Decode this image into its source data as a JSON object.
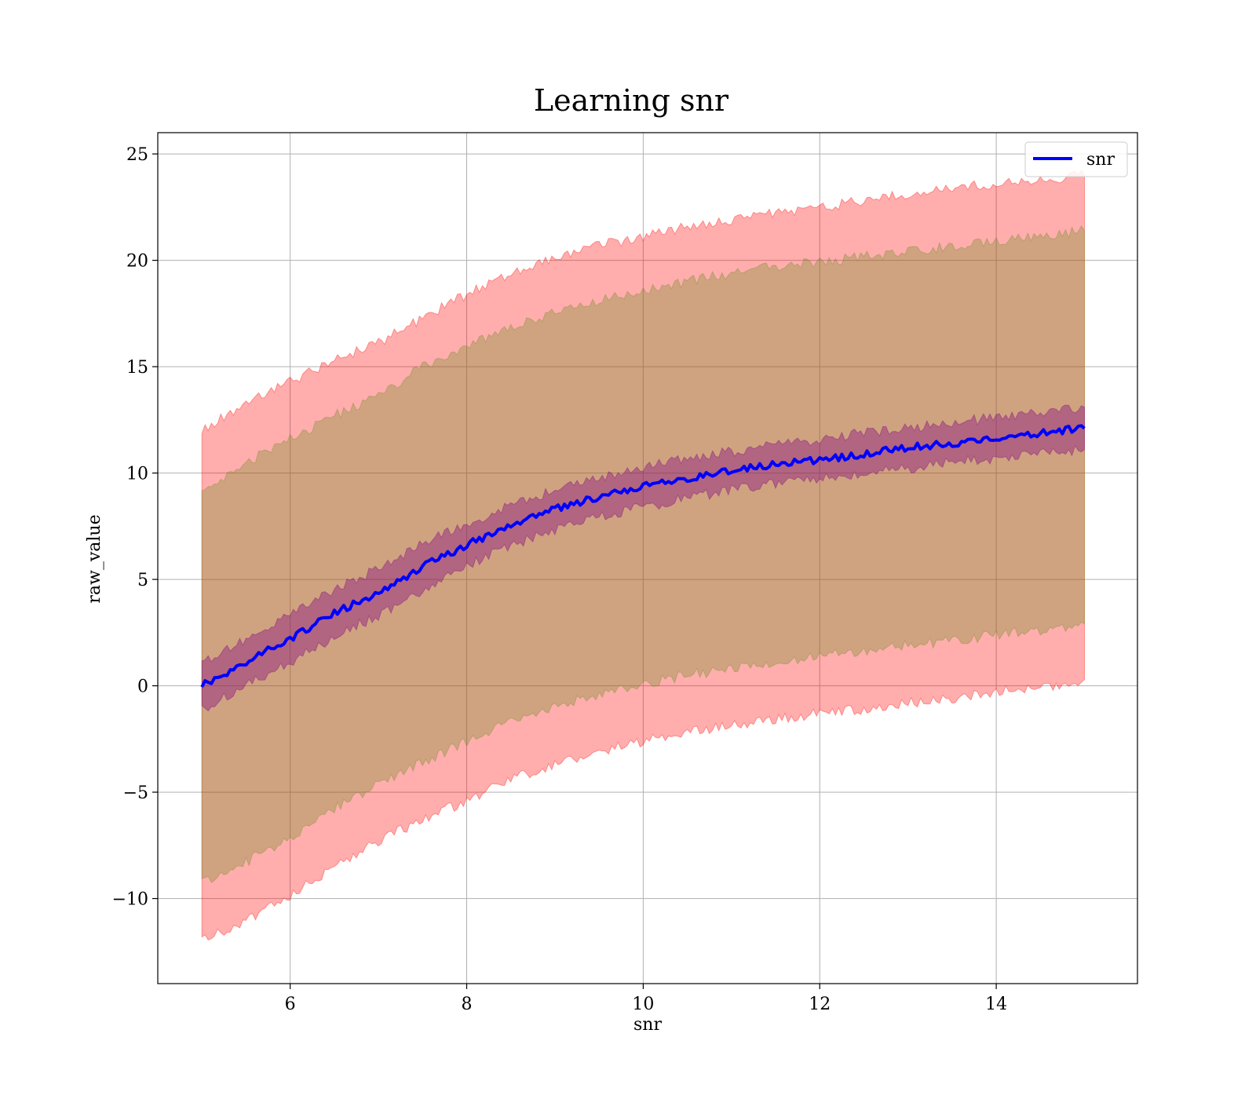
{
  "chart_data": {
    "type": "line",
    "title": "Learning snr",
    "xlabel": "snr",
    "ylabel": "raw_value",
    "xlim": [
      4.5,
      15.6
    ],
    "ylim": [
      -14,
      26
    ],
    "x_ticks": [
      6,
      8,
      10,
      12,
      14
    ],
    "y_ticks": [
      25,
      20,
      15,
      10,
      5,
      0,
      -5,
      -10
    ],
    "x_tick_labels": [
      "6",
      "8",
      "10",
      "12",
      "14"
    ],
    "y_tick_labels": [
      "25",
      "20",
      "15",
      "10",
      "5",
      "0",
      "−5",
      "−10"
    ],
    "grid": true,
    "legend": {
      "position": "top-right",
      "entries": [
        "snr"
      ]
    },
    "x": [
      5,
      5.5,
      6,
      6.5,
      7,
      7.5,
      8,
      8.5,
      9,
      9.5,
      10,
      10.5,
      11,
      11.5,
      12,
      12.5,
      13,
      13.5,
      14,
      14.5,
      15
    ],
    "series": [
      {
        "name": "snr",
        "color": "#0000ff",
        "values": [
          0.0,
          1.1,
          2.2,
          3.4,
          4.4,
          5.6,
          6.6,
          7.6,
          8.3,
          8.9,
          9.4,
          9.7,
          10.1,
          10.4,
          10.6,
          10.9,
          11.2,
          11.4,
          11.6,
          11.9,
          12.1
        ]
      }
    ],
    "bands": [
      {
        "color": "#ff0000",
        "opacity": 0.32,
        "upper": [
          12.0,
          13.3,
          14.3,
          15.3,
          16.1,
          17.3,
          18.4,
          19.4,
          20.1,
          20.7,
          21.1,
          21.6,
          21.9,
          22.2,
          22.5,
          22.8,
          23.1,
          23.4,
          23.6,
          23.8,
          24.0
        ],
        "lower": [
          -12.0,
          -11.1,
          -9.9,
          -8.5,
          -7.3,
          -6.3,
          -5.4,
          -4.4,
          -3.7,
          -3.1,
          -2.6,
          -2.2,
          -1.9,
          -1.6,
          -1.3,
          -1.1,
          -0.8,
          -0.6,
          -0.3,
          -0.1,
          0.3
        ]
      },
      {
        "color": "#6b8e23",
        "opacity": 0.32,
        "upper": [
          9.2,
          10.5,
          11.6,
          12.7,
          13.6,
          15.0,
          15.9,
          16.9,
          17.5,
          18.1,
          18.6,
          19.0,
          19.4,
          19.7,
          19.9,
          20.2,
          20.4,
          20.7,
          20.9,
          21.1,
          21.4
        ],
        "lower": [
          -9.2,
          -8.3,
          -7.1,
          -5.8,
          -4.6,
          -3.6,
          -2.6,
          -1.7,
          -1.0,
          -0.4,
          0.1,
          0.5,
          0.8,
          1.1,
          1.4,
          1.6,
          1.9,
          2.1,
          2.4,
          2.6,
          2.9
        ]
      },
      {
        "color": "#800080",
        "opacity": 0.38,
        "upper": [
          1.1,
          2.2,
          3.3,
          4.5,
          5.5,
          6.7,
          7.6,
          8.5,
          9.2,
          9.8,
          10.3,
          10.7,
          11.0,
          11.3,
          11.6,
          11.9,
          12.1,
          12.4,
          12.6,
          12.9,
          13.1
        ],
        "lower": [
          -1.1,
          0.0,
          1.1,
          2.3,
          3.3,
          4.5,
          5.6,
          6.6,
          7.3,
          7.9,
          8.4,
          8.8,
          9.2,
          9.5,
          9.7,
          10.0,
          10.2,
          10.5,
          10.7,
          10.9,
          11.1
        ]
      }
    ]
  }
}
